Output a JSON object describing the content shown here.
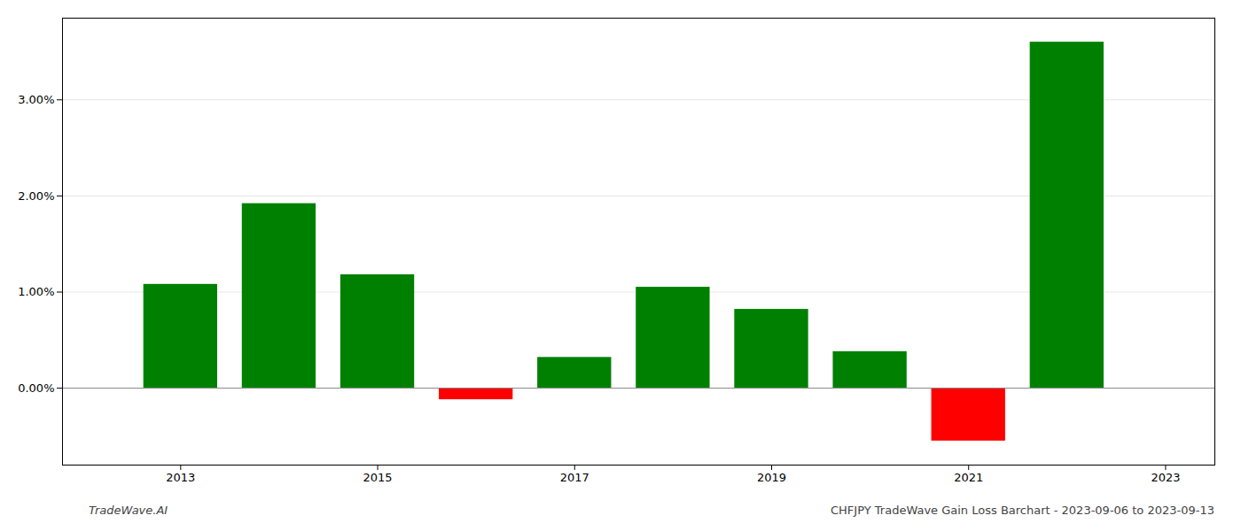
{
  "chart_data": {
    "type": "bar",
    "x": [
      2013,
      2014,
      2015,
      2016,
      2017,
      2018,
      2019,
      2020,
      2021,
      2022
    ],
    "values": [
      1.08,
      1.92,
      1.18,
      -0.12,
      0.32,
      1.05,
      0.82,
      0.38,
      -0.55,
      3.6
    ],
    "colors": [
      "#008000",
      "#008000",
      "#008000",
      "#ff0000",
      "#008000",
      "#008000",
      "#008000",
      "#008000",
      "#ff0000",
      "#008000"
    ],
    "xlim": [
      2011.8,
      2023.5
    ],
    "xticks": [
      2013,
      2015,
      2017,
      2019,
      2021,
      2023
    ],
    "ylim": [
      -0.8,
      3.85
    ],
    "yticks": [
      {
        "value": 0.0,
        "label": "0.00%"
      },
      {
        "value": 1.0,
        "label": "1.00%"
      },
      {
        "value": 2.0,
        "label": "2.00%"
      },
      {
        "value": 3.0,
        "label": "3.00%"
      }
    ],
    "grid": true,
    "annotations": [
      "TradeWave.AI",
      "CHFJPY TradeWave Gain Loss Barchart - 2023-09-06 to 2023-09-13"
    ]
  }
}
